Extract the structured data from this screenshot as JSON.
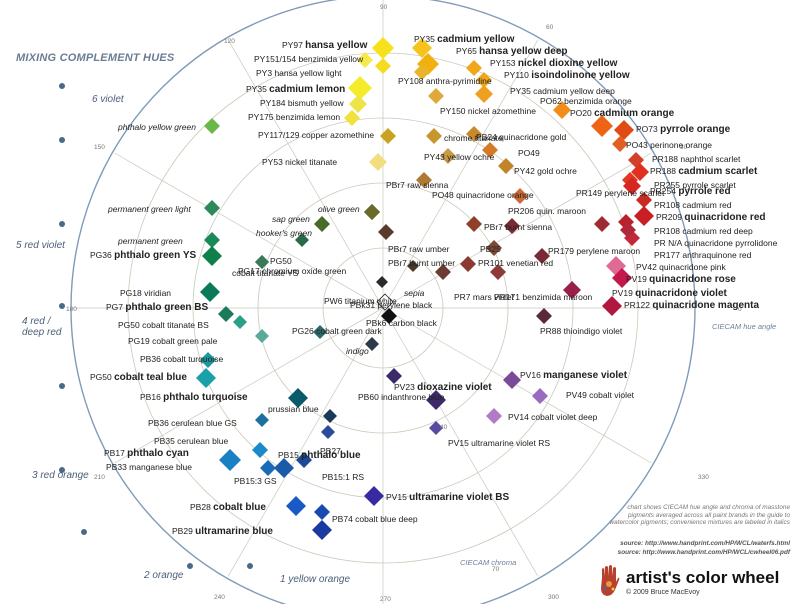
{
  "title": "MIXING COMPLEMENT HUES",
  "hue_labels": [
    "6 violet",
    "5 red violet",
    "4 red / deep red",
    "3 red orange",
    "2 orange",
    "1 yellow orange"
  ],
  "angle_labels": [
    "90",
    "60",
    "120",
    "30",
    "150",
    "0",
    "180",
    "330",
    "210",
    "300",
    "240",
    "270",
    "70",
    "40"
  ],
  "axis_labels": {
    "hue_angle": "CIECAM hue angle",
    "chroma": "CIECAM chroma"
  },
  "note": "chart shows CIECAM hue angle and chroma of masstone pigments averaged across all paint brands in the guide to watercolor pigments; convenience mixtures are labeled in italics",
  "sources": [
    "source: http://www.handprint.com/HP/WCL/waterfs.html",
    "source: http://www.handprint.com/HP/WCL/cwheel06.pdf"
  ],
  "brand": "artist's color wheel",
  "copyright": "© 2009 Bruce MacEvoy",
  "colors": {
    "rings": "#c9c9b8",
    "spokes": "#c9c9b8",
    "outer_ring": "#7f9bb8",
    "title": "#6a7d94"
  },
  "labels": [
    {
      "c": "PY97",
      "n": "hansa yellow",
      "b": true
    },
    {
      "c": "PY151/154",
      "n": "benzimida yellow"
    },
    {
      "c": "PY3",
      "n": "hansa yellow light"
    },
    {
      "c": "PY35",
      "n": "cadmium lemon",
      "b": true
    },
    {
      "c": "PY184",
      "n": "bismuth yellow"
    },
    {
      "c": "PY175",
      "n": "benzimida lemon"
    },
    {
      "c": "PY117/129",
      "n": "copper azomethine"
    },
    {
      "c": "PY53",
      "n": "nickel titanate"
    },
    {
      "c": "PY35",
      "n": "cadmium yellow",
      "b": true
    },
    {
      "c": "PY65",
      "n": "hansa yellow deep",
      "b": true
    },
    {
      "c": "PY153",
      "n": "nickel dioxine yellow",
      "b": true
    },
    {
      "c": "PY110",
      "n": "isoindolinone yellow",
      "b": true
    },
    {
      "c": "PY35",
      "n": "cadmium yellow deep"
    },
    {
      "c": "PO62",
      "n": "benzimida orange"
    },
    {
      "c": "PO20",
      "n": "cadmium orange",
      "b": true
    },
    {
      "c": "PO73",
      "n": "pyrrole orange",
      "b": true
    },
    {
      "c": "PO43",
      "n": "perinone orange"
    },
    {
      "c": "PY108",
      "n": "anthra-pyrimidine"
    },
    {
      "c": "PY150",
      "n": "nickel azomethine"
    },
    {
      "c": "",
      "n": "chrome titanate"
    },
    {
      "c": "PB24",
      "n": "quinacridone gold"
    },
    {
      "c": "PO49",
      "n": ""
    },
    {
      "c": "PY43",
      "n": "yellow ochre"
    },
    {
      "c": "PY42",
      "n": "gold ochre"
    },
    {
      "c": "PBr7",
      "n": "raw sienna"
    },
    {
      "c": "PO48",
      "n": "quinacridone orange"
    },
    {
      "c": "PR188",
      "n": "naphthol scarlet"
    },
    {
      "c": "PR188",
      "n": "cadmium scarlet",
      "b": true
    },
    {
      "c": "PR255",
      "n": "pyrrole scarlet"
    },
    {
      "c": "PR254",
      "n": "pyrrole red",
      "b": true
    },
    {
      "c": "PR108",
      "n": "cadmium red"
    },
    {
      "c": "PR209",
      "n": "quinacridone red",
      "b": true
    },
    {
      "c": "PR108",
      "n": "cadmium red deep"
    },
    {
      "c": "PR N/A",
      "n": "quinacridone pyrrolidone"
    },
    {
      "c": "PR177",
      "n": "anthraquinone red"
    },
    {
      "c": "PV42",
      "n": "quinacridone pink"
    },
    {
      "c": "PV19",
      "n": "quinacridone rose",
      "b": true
    },
    {
      "c": "PV19",
      "n": "quinacridone violet",
      "b": true
    },
    {
      "c": "PR122",
      "n": "quinacridone magenta",
      "b": true
    },
    {
      "c": "PR149",
      "n": "perylene scarlet"
    },
    {
      "c": "PR206",
      "n": "quin. maroon"
    },
    {
      "c": "PR179",
      "n": "perylene maroon"
    },
    {
      "c": "PR171",
      "n": "benzimida maroon"
    },
    {
      "c": "PR88",
      "n": "thioindigo violet"
    },
    {
      "c": "PBr7",
      "n": "burnt sienna"
    },
    {
      "c": "PBr7",
      "n": "raw umber"
    },
    {
      "c": "PBr7",
      "n": "burnt umber"
    },
    {
      "c": "PB25",
      "n": ""
    },
    {
      "c": "PR101",
      "n": "venetian red"
    },
    {
      "c": "PR7",
      "n": "mars violet"
    },
    {
      "c": "PBk31",
      "n": "perylene black"
    },
    {
      "c": "PW6",
      "n": "titanium white"
    },
    {
      "c": "PBk6",
      "n": "carbon black"
    },
    {
      "c": "",
      "n": "sepia",
      "i": true
    },
    {
      "c": "",
      "n": "indigo",
      "i": true
    },
    {
      "c": "",
      "n": "olive green",
      "i": true
    },
    {
      "c": "",
      "n": "sap green",
      "i": true
    },
    {
      "c": "",
      "n": "hooker's green",
      "i": true
    },
    {
      "c": "",
      "n": "phthalo yellow green",
      "i": true
    },
    {
      "c": "",
      "n": "permanent green light",
      "i": true
    },
    {
      "c": "",
      "n": "permanent green",
      "i": true
    },
    {
      "c": "PG36",
      "n": "phthalo green YS",
      "b": true
    },
    {
      "c": "PG50",
      "n": ""
    },
    {
      "c": "",
      "n": "cobalt titanate YS"
    },
    {
      "c": "PG17",
      "n": "chromium oxide green"
    },
    {
      "c": "PG18",
      "n": "viridian"
    },
    {
      "c": "PG7",
      "n": "phthalo green BS",
      "b": true
    },
    {
      "c": "PG50",
      "n": "cobalt titanate BS"
    },
    {
      "c": "PG19",
      "n": "cobalt green pale"
    },
    {
      "c": "PG26",
      "n": "cobalt green dark"
    },
    {
      "c": "PB36",
      "n": "cobalt turquoise"
    },
    {
      "c": "PG50",
      "n": "cobalt teal blue",
      "b": true
    },
    {
      "c": "PB16",
      "n": "phthalo turquoise",
      "b": true
    },
    {
      "c": "PB36",
      "n": "cerulean blue GS"
    },
    {
      "c": "",
      "n": "prussian blue"
    },
    {
      "c": "PB35",
      "n": "cerulean blue"
    },
    {
      "c": "PB17",
      "n": "phthalo cyan",
      "b": true
    },
    {
      "c": "PB33",
      "n": "manganese blue"
    },
    {
      "c": "PB15:3",
      "n": "GS"
    },
    {
      "c": "PB15",
      "n": "phthalo blue",
      "b": true
    },
    {
      "c": "PB27",
      "n": ""
    },
    {
      "c": "",
      "n": "PB15:1 RS"
    },
    {
      "c": "PB60",
      "n": "indanthrone blue"
    },
    {
      "c": "PV23",
      "n": "dioxazine violet",
      "b": true
    },
    {
      "c": "PV16",
      "n": "manganese violet",
      "b": true
    },
    {
      "c": "PV49",
      "n": "cobalt violet"
    },
    {
      "c": "PV14",
      "n": "cobalt violet deep"
    },
    {
      "c": "PV15",
      "n": "ultramarine violet RS"
    },
    {
      "c": "PV15",
      "n": "ultramarine violet BS",
      "b": true
    },
    {
      "c": "PB28",
      "n": "cobalt blue",
      "b": true
    },
    {
      "c": "PB74",
      "n": "cobalt blue deep"
    },
    {
      "c": "PB29",
      "n": "ultramarine blue",
      "b": true
    }
  ]
}
